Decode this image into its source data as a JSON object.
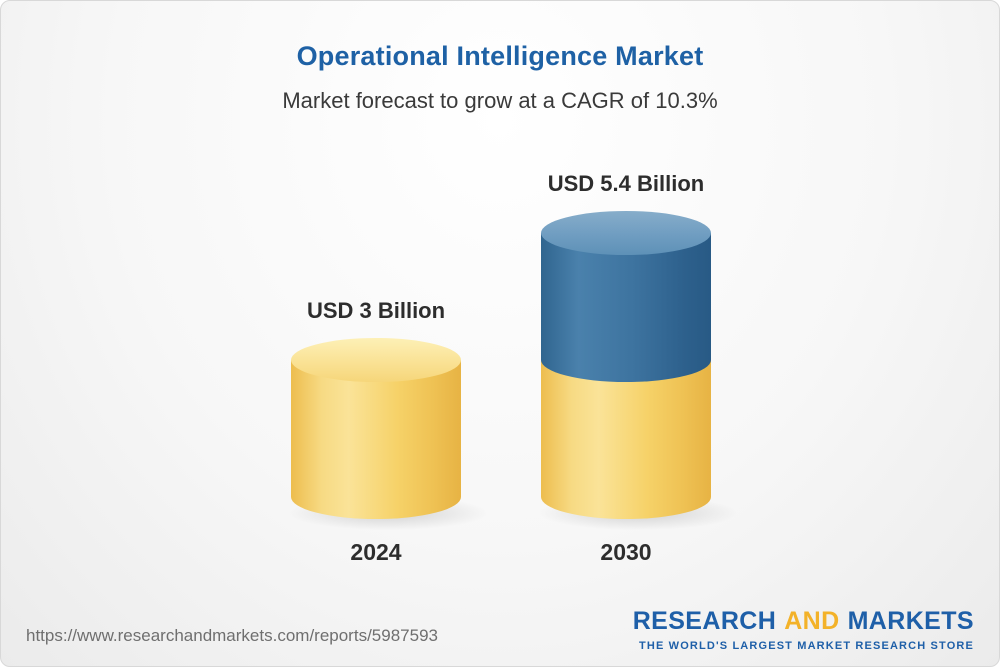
{
  "chart_data": {
    "type": "bar",
    "title": "Operational Intelligence Market",
    "subtitle": "Market forecast to grow at a CAGR of 10.3%",
    "categories": [
      "2024",
      "2030"
    ],
    "values": [
      3,
      5.4
    ],
    "value_labels": [
      "USD 3 Billion",
      "USD 5.4 Billion"
    ],
    "unit": "USD Billion",
    "cagr_percent": 10.3,
    "ylim": [
      0,
      6
    ],
    "grid": false,
    "legend": "none",
    "colors": {
      "base_segment": "#F6CE63",
      "growth_segment": "#39709E",
      "title_text": "#1E61A5",
      "label_text": "#2D2D2D"
    }
  },
  "footer": {
    "source_url": "https://www.researchandmarkets.com/reports/5987593",
    "logo": {
      "word1": "RESEARCH",
      "word2": "AND",
      "word3": "MARKETS",
      "tagline": "THE WORLD'S LARGEST MARKET RESEARCH STORE"
    }
  }
}
